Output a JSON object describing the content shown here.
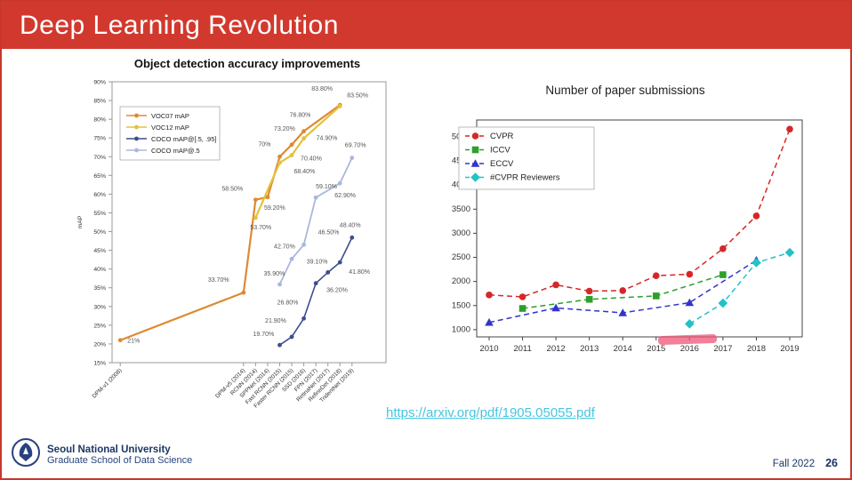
{
  "header": {
    "title": "Deep Learning Revolution"
  },
  "link": {
    "text": "https://arxiv.org/pdf/1905.05055.pdf"
  },
  "footer": {
    "university": "Seoul National University",
    "school": "Graduate School of Data Science",
    "term": "Fall 2022",
    "page": "26"
  },
  "colors": {
    "banner": "#D2392E",
    "border": "#C8372D",
    "link": "#45C6DF",
    "footer_text": "#1B3764",
    "highlight": "#EE5577"
  },
  "chart_data": [
    {
      "type": "line",
      "title": "Object detection accuracy improvements",
      "ylabel": "mAP",
      "ylim": [
        15,
        90
      ],
      "ytick_step": 5,
      "ytick_suffix": "%",
      "legend_position": "top-left",
      "grid": false,
      "categories": [
        "DPM-v1 (2008)",
        "DPM-v5 (2014)",
        "RCNN (2014)",
        "SPPNet (2014)",
        "Fast RCNN (2015)",
        "Faster RCNN (2015)",
        "SSD (2016)",
        "FPN (2017)",
        "RetinaNet (2017)",
        "RefineDet (2018)",
        "TridentNet (2019)"
      ],
      "series": [
        {
          "name": "VOC07 mAP",
          "color": "#DD8A33",
          "marker": "circle",
          "values": [
            21,
            33.7,
            58.5,
            59.2,
            70,
            73.2,
            76.8,
            null,
            null,
            83.8,
            null
          ],
          "labels": [
            "21%",
            "33.70%",
            "58.50%",
            "59.20%",
            "70%",
            "73.20%",
            "76.80%",
            null,
            null,
            "83.80%",
            null
          ]
        },
        {
          "name": "VOC12 mAP",
          "color": "#E3C23B",
          "marker": "circle",
          "values": [
            null,
            null,
            53.7,
            null,
            68.4,
            70.4,
            74.9,
            null,
            null,
            83.5,
            null
          ],
          "labels": [
            null,
            null,
            "53.70%",
            null,
            "68.40%",
            "70.40%",
            "74.90%",
            null,
            null,
            "83.50%",
            null
          ]
        },
        {
          "name": "COCO mAP@[.5, .95]",
          "color": "#3C4E8C",
          "marker": "circle",
          "values": [
            null,
            null,
            null,
            null,
            19.7,
            21.9,
            26.8,
            36.2,
            39.1,
            41.8,
            48.4
          ],
          "labels": [
            null,
            null,
            null,
            null,
            "19.70%",
            "21.90%",
            "26.80%",
            "36.20%",
            "39.10%",
            "41.80%",
            "48.40%"
          ]
        },
        {
          "name": "COCO mAP@.5",
          "color": "#A9B8DC",
          "marker": "circle",
          "values": [
            null,
            null,
            null,
            null,
            35.9,
            42.7,
            46.5,
            59.1,
            null,
            62.9,
            69.7
          ],
          "labels": [
            null,
            null,
            null,
            null,
            "35.90%",
            "42.70%",
            "46.50%",
            "59.10%",
            null,
            "62.90%",
            "69.70%"
          ]
        }
      ]
    },
    {
      "type": "line",
      "title": "Number of paper submissions",
      "ylim": [
        850,
        5350
      ],
      "yticks": [
        1000,
        1500,
        2000,
        2500,
        3000,
        3500,
        4000,
        4500,
        5000
      ],
      "legend_position": "top-left",
      "grid": false,
      "categories": [
        "2010",
        "2011",
        "2012",
        "2013",
        "2014",
        "2015",
        "2016",
        "2017",
        "2018",
        "2019"
      ],
      "series": [
        {
          "name": "CVPR",
          "color": "#D62728",
          "marker": "circle",
          "dash": true,
          "values": [
            1720,
            1680,
            1930,
            1800,
            1810,
            2120,
            2150,
            2680,
            3360,
            5160
          ]
        },
        {
          "name": "ICCV",
          "color": "#2CA02C",
          "marker": "square",
          "dash": true,
          "values": [
            null,
            1440,
            null,
            1630,
            null,
            1700,
            null,
            2140,
            null,
            null
          ]
        },
        {
          "name": "ECCV",
          "color": "#3333CC",
          "marker": "triangle",
          "dash": true,
          "values": [
            1150,
            null,
            1450,
            null,
            1350,
            null,
            1560,
            null,
            2440,
            null
          ]
        },
        {
          "name": "#CVPR Reviewers",
          "color": "#22C2C6",
          "marker": "diamond",
          "dash": true,
          "values": [
            null,
            null,
            null,
            null,
            null,
            null,
            1120,
            1550,
            2390,
            2600
          ]
        }
      ]
    }
  ]
}
